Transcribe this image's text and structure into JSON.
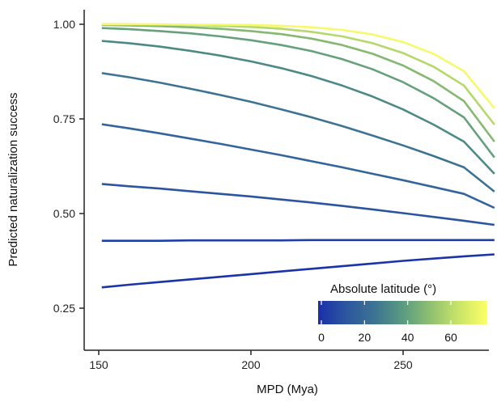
{
  "chart_data": {
    "type": "line",
    "xlabel": "MPD (Mya)",
    "ylabel": "Predicted naturalization success",
    "xlim": [
      145,
      283
    ],
    "ylim": [
      0.14,
      1.04
    ],
    "x_ticks": [
      150,
      200,
      250
    ],
    "y_ticks": [
      0.25,
      0.5,
      0.75,
      1.0
    ],
    "y_tick_labels": [
      "0.25",
      "0.50",
      "0.75",
      "1.00"
    ],
    "x": [
      151,
      160,
      170,
      180,
      190,
      200,
      210,
      220,
      230,
      240,
      250,
      260,
      270,
      280
    ],
    "series": [
      {
        "latitude": 0,
        "color": "#1a33a8",
        "values": [
          0.305,
          0.312,
          0.319,
          0.326,
          0.333,
          0.34,
          0.347,
          0.354,
          0.361,
          0.368,
          0.375,
          0.381,
          0.387,
          0.392
        ]
      },
      {
        "latitude": 8,
        "color": "#1f3ea6",
        "values": [
          0.428,
          0.428,
          0.428,
          0.429,
          0.429,
          0.429,
          0.429,
          0.43,
          0.43,
          0.43,
          0.43,
          0.43,
          0.43,
          0.43
        ]
      },
      {
        "latitude": 16,
        "color": "#2b55a0",
        "values": [
          0.578,
          0.572,
          0.566,
          0.559,
          0.552,
          0.545,
          0.537,
          0.529,
          0.52,
          0.511,
          0.501,
          0.491,
          0.481,
          0.47
        ]
      },
      {
        "latitude": 24,
        "color": "#33649c",
        "values": [
          0.736,
          0.725,
          0.712,
          0.698,
          0.684,
          0.669,
          0.654,
          0.638,
          0.622,
          0.605,
          0.588,
          0.57,
          0.552,
          0.515
        ]
      },
      {
        "latitude": 32,
        "color": "#3d7392",
        "values": [
          0.871,
          0.86,
          0.846,
          0.83,
          0.813,
          0.795,
          0.775,
          0.754,
          0.731,
          0.706,
          0.68,
          0.652,
          0.622,
          0.558
        ]
      },
      {
        "latitude": 40,
        "color": "#4d8a86",
        "values": [
          0.956,
          0.95,
          0.941,
          0.93,
          0.917,
          0.902,
          0.884,
          0.863,
          0.838,
          0.809,
          0.775,
          0.735,
          0.69,
          0.605
        ]
      },
      {
        "latitude": 48,
        "color": "#66a07c",
        "values": [
          0.99,
          0.987,
          0.982,
          0.976,
          0.968,
          0.958,
          0.945,
          0.929,
          0.908,
          0.881,
          0.847,
          0.805,
          0.754,
          0.648
        ]
      },
      {
        "latitude": 56,
        "color": "#86b872",
        "values": [
          0.998,
          0.997,
          0.995,
          0.992,
          0.988,
          0.982,
          0.974,
          0.962,
          0.945,
          0.922,
          0.891,
          0.85,
          0.797,
          0.69
        ]
      },
      {
        "latitude": 64,
        "color": "#b4d86a",
        "values": [
          1.0,
          1.0,
          0.999,
          0.998,
          0.996,
          0.993,
          0.988,
          0.98,
          0.968,
          0.95,
          0.924,
          0.888,
          0.838,
          0.735
        ]
      },
      {
        "latitude": 72,
        "color": "#f5f96b",
        "values": [
          1.0,
          1.0,
          1.0,
          0.999,
          0.999,
          0.998,
          0.996,
          0.992,
          0.985,
          0.973,
          0.953,
          0.922,
          0.876,
          0.778
        ]
      }
    ],
    "legend": {
      "title": "Absolute latitude (°)",
      "placement": "bottom-right",
      "min": 0,
      "max": 75,
      "ticks": [
        0,
        20,
        40,
        60
      ],
      "colors": [
        "#1a2fa8",
        "#2d569f",
        "#3d7392",
        "#5a9a80",
        "#8fc070",
        "#c9e468",
        "#fbff66"
      ]
    },
    "grid": false
  }
}
